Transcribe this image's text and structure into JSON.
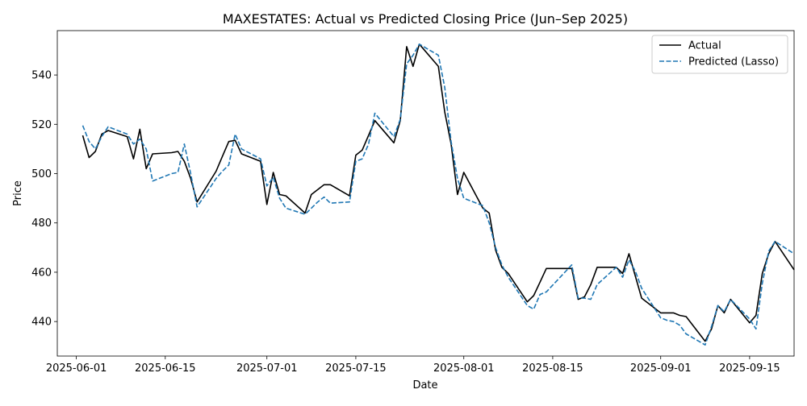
{
  "chart_data": {
    "type": "line",
    "title": "MAXESTATES: Actual vs Predicted Closing Price (Jun–Sep 2025)",
    "xlabel": "Date",
    "ylabel": "Price",
    "x_tick_labels": [
      "2025-06-01",
      "2025-06-15",
      "2025-07-01",
      "2025-07-15",
      "2025-08-01",
      "2025-08-15",
      "2025-09-01",
      "2025-09-15"
    ],
    "x_ticks": [
      "2025-06-01",
      "2025-06-15",
      "2025-07-01",
      "2025-07-15",
      "2025-08-01",
      "2025-08-15",
      "2025-09-01",
      "2025-09-15"
    ],
    "y_ticks": [
      440,
      460,
      480,
      500,
      520,
      540
    ],
    "xlim": [
      "2025-05-29",
      "2025-09-22"
    ],
    "ylim": [
      426,
      558
    ],
    "grid": false,
    "legend_position": "upper right",
    "series": [
      {
        "name": "Actual",
        "color": "#000000",
        "dash": "solid",
        "points": [
          [
            "2025-06-02",
            515.5
          ],
          [
            "2025-06-03",
            506.5
          ],
          [
            "2025-06-04",
            509.0
          ],
          [
            "2025-06-05",
            516.0
          ],
          [
            "2025-06-06",
            517.5
          ],
          [
            "2025-06-09",
            515.0
          ],
          [
            "2025-06-10",
            506.0
          ],
          [
            "2025-06-11",
            518.0
          ],
          [
            "2025-06-12",
            502.0
          ],
          [
            "2025-06-13",
            508.0
          ],
          [
            "2025-06-16",
            508.5
          ],
          [
            "2025-06-17",
            509.0
          ],
          [
            "2025-06-18",
            505.0
          ],
          [
            "2025-06-19",
            498.0
          ],
          [
            "2025-06-20",
            488.5
          ],
          [
            "2025-06-23",
            501.0
          ],
          [
            "2025-06-24",
            507.0
          ],
          [
            "2025-06-25",
            513.0
          ],
          [
            "2025-06-26",
            513.5
          ],
          [
            "2025-06-27",
            508.0
          ],
          [
            "2025-06-30",
            505.0
          ],
          [
            "2025-07-01",
            487.5
          ],
          [
            "2025-07-02",
            500.5
          ],
          [
            "2025-07-03",
            491.5
          ],
          [
            "2025-07-04",
            491.0
          ],
          [
            "2025-07-07",
            484.0
          ],
          [
            "2025-07-08",
            491.5
          ],
          [
            "2025-07-09",
            493.5
          ],
          [
            "2025-07-10",
            495.5
          ],
          [
            "2025-07-11",
            495.5
          ],
          [
            "2025-07-14",
            491.0
          ],
          [
            "2025-07-15",
            507.5
          ],
          [
            "2025-07-16",
            509.5
          ],
          [
            "2025-07-17",
            515.5
          ],
          [
            "2025-07-18",
            521.5
          ],
          [
            "2025-07-21",
            512.5
          ],
          [
            "2025-07-22",
            521.5
          ],
          [
            "2025-07-23",
            551.5
          ],
          [
            "2025-07-24",
            543.5
          ],
          [
            "2025-07-25",
            552.5
          ],
          [
            "2025-07-28",
            543.5
          ],
          [
            "2025-07-29",
            525.0
          ],
          [
            "2025-07-30",
            512.0
          ],
          [
            "2025-07-31",
            491.5
          ],
          [
            "2025-08-01",
            500.5
          ],
          [
            "2025-08-04",
            486.0
          ],
          [
            "2025-08-05",
            484.0
          ],
          [
            "2025-08-06",
            469.0
          ],
          [
            "2025-08-07",
            462.0
          ],
          [
            "2025-08-08",
            459.5
          ],
          [
            "2025-08-11",
            448.0
          ],
          [
            "2025-08-12",
            450.5
          ],
          [
            "2025-08-13",
            456.0
          ],
          [
            "2025-08-14",
            461.5
          ],
          [
            "2025-08-18",
            461.5
          ],
          [
            "2025-08-19",
            449.0
          ],
          [
            "2025-08-20",
            450.0
          ],
          [
            "2025-08-21",
            455.0
          ],
          [
            "2025-08-22",
            462.0
          ],
          [
            "2025-08-25",
            462.0
          ],
          [
            "2025-08-26",
            459.5
          ],
          [
            "2025-08-27",
            467.5
          ],
          [
            "2025-08-28",
            458.5
          ],
          [
            "2025-08-29",
            449.5
          ],
          [
            "2025-09-01",
            443.5
          ],
          [
            "2025-09-02",
            443.5
          ],
          [
            "2025-09-03",
            443.5
          ],
          [
            "2025-09-04",
            442.5
          ],
          [
            "2025-09-05",
            442.0
          ],
          [
            "2025-09-08",
            432.0
          ],
          [
            "2025-09-09",
            437.0
          ],
          [
            "2025-09-10",
            446.5
          ],
          [
            "2025-09-11",
            443.5
          ],
          [
            "2025-09-12",
            449.0
          ],
          [
            "2025-09-15",
            439.5
          ],
          [
            "2025-09-16",
            442.5
          ],
          [
            "2025-09-17",
            459.5
          ],
          [
            "2025-09-18",
            467.5
          ],
          [
            "2025-09-19",
            472.5
          ],
          [
            "2025-09-22",
            461.0
          ]
        ]
      },
      {
        "name": "Predicted (Lasso)",
        "color": "#1f77b4",
        "dash": "dashed",
        "points": [
          [
            "2025-06-02",
            519.5
          ],
          [
            "2025-06-03",
            513.0
          ],
          [
            "2025-06-04",
            510.0
          ],
          [
            "2025-06-05",
            515.0
          ],
          [
            "2025-06-06",
            519.0
          ],
          [
            "2025-06-09",
            516.0
          ],
          [
            "2025-06-10",
            512.0
          ],
          [
            "2025-06-11",
            514.0
          ],
          [
            "2025-06-12",
            510.0
          ],
          [
            "2025-06-13",
            497.0
          ],
          [
            "2025-06-16",
            500.0
          ],
          [
            "2025-06-17",
            500.5
          ],
          [
            "2025-06-18",
            512.0
          ],
          [
            "2025-06-19",
            500.0
          ],
          [
            "2025-06-20",
            486.5
          ],
          [
            "2025-06-23",
            498.0
          ],
          [
            "2025-06-24",
            501.0
          ],
          [
            "2025-06-25",
            503.5
          ],
          [
            "2025-06-26",
            516.0
          ],
          [
            "2025-06-27",
            510.0
          ],
          [
            "2025-06-30",
            506.0
          ],
          [
            "2025-07-01",
            495.0
          ],
          [
            "2025-07-02",
            498.5
          ],
          [
            "2025-07-03",
            490.0
          ],
          [
            "2025-07-04",
            486.0
          ],
          [
            "2025-07-07",
            483.5
          ],
          [
            "2025-07-08",
            486.0
          ],
          [
            "2025-07-09",
            488.5
          ],
          [
            "2025-07-10",
            490.5
          ],
          [
            "2025-07-11",
            488.0
          ],
          [
            "2025-07-14",
            488.5
          ],
          [
            "2025-07-15",
            505.0
          ],
          [
            "2025-07-16",
            506.0
          ],
          [
            "2025-07-17",
            512.0
          ],
          [
            "2025-07-18",
            524.5
          ],
          [
            "2025-07-21",
            515.0
          ],
          [
            "2025-07-22",
            522.0
          ],
          [
            "2025-07-23",
            544.5
          ],
          [
            "2025-07-24",
            548.0
          ],
          [
            "2025-07-25",
            552.5
          ],
          [
            "2025-07-28",
            548.0
          ],
          [
            "2025-07-29",
            535.0
          ],
          [
            "2025-07-30",
            513.0
          ],
          [
            "2025-07-31",
            498.0
          ],
          [
            "2025-08-01",
            490.0
          ],
          [
            "2025-08-04",
            487.0
          ],
          [
            "2025-08-05",
            480.0
          ],
          [
            "2025-08-06",
            470.0
          ],
          [
            "2025-08-07",
            463.0
          ],
          [
            "2025-08-08",
            458.0
          ],
          [
            "2025-08-11",
            446.5
          ],
          [
            "2025-08-12",
            445.0
          ],
          [
            "2025-08-13",
            451.0
          ],
          [
            "2025-08-14",
            452.0
          ],
          [
            "2025-08-18",
            463.0
          ],
          [
            "2025-08-19",
            449.5
          ],
          [
            "2025-08-20",
            449.5
          ],
          [
            "2025-08-21",
            449.0
          ],
          [
            "2025-08-22",
            455.0
          ],
          [
            "2025-08-25",
            462.0
          ],
          [
            "2025-08-26",
            458.0
          ],
          [
            "2025-08-27",
            465.0
          ],
          [
            "2025-08-28",
            460.5
          ],
          [
            "2025-08-29",
            453.5
          ],
          [
            "2025-09-01",
            441.5
          ],
          [
            "2025-09-02",
            440.5
          ],
          [
            "2025-09-03",
            440.0
          ],
          [
            "2025-09-04",
            438.5
          ],
          [
            "2025-09-05",
            435.0
          ],
          [
            "2025-09-08",
            430.5
          ],
          [
            "2025-09-09",
            438.0
          ],
          [
            "2025-09-10",
            446.5
          ],
          [
            "2025-09-11",
            444.0
          ],
          [
            "2025-09-12",
            449.0
          ],
          [
            "2025-09-15",
            441.0
          ],
          [
            "2025-09-16",
            437.0
          ],
          [
            "2025-09-17",
            455.5
          ],
          [
            "2025-09-18",
            468.5
          ],
          [
            "2025-09-19",
            472.5
          ],
          [
            "2025-09-22",
            467.5
          ]
        ]
      }
    ]
  }
}
